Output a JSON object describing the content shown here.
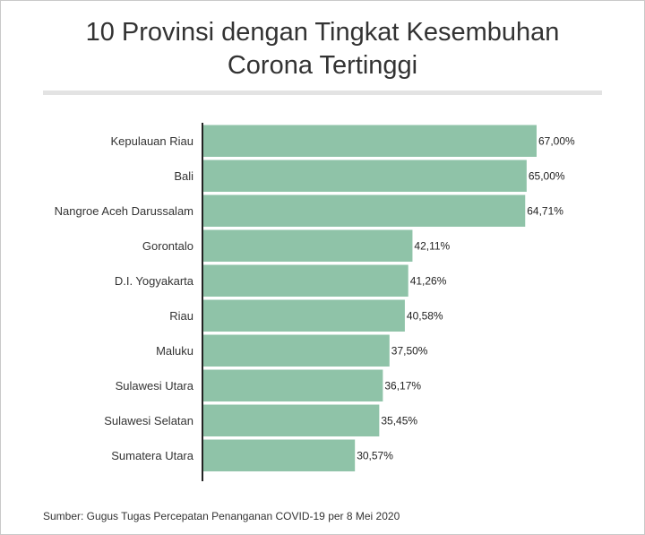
{
  "chart_data": {
    "type": "bar",
    "orientation": "horizontal",
    "title": [
      "10 Provinsi dengan Tingkat Kesembuhan",
      "Corona Tertinggi"
    ],
    "categories": [
      "Kepulauan Riau",
      "Bali",
      "Nangroe Aceh Darussalam",
      "Gorontalo",
      "D.I. Yogyakarta",
      "Riau",
      "Maluku",
      "Sulawesi Utara",
      "Sulawesi Selatan",
      "Sumatera Utara"
    ],
    "values": [
      67.0,
      65.0,
      64.71,
      42.11,
      41.26,
      40.58,
      37.5,
      36.17,
      35.45,
      30.57
    ],
    "value_labels": [
      "67,00%",
      "65,00%",
      "64,71%",
      "42,11%",
      "41,26%",
      "40,58%",
      "37,50%",
      "36,17%",
      "35,45%",
      "30,57%"
    ],
    "unit": "%",
    "xlim": [
      0,
      67
    ],
    "bar_color": "#8fc3a8",
    "grid": false,
    "source": "Sumber: Gugus Tugas Percepatan Penanganan COVID-19 per 8 Mei 2020"
  }
}
